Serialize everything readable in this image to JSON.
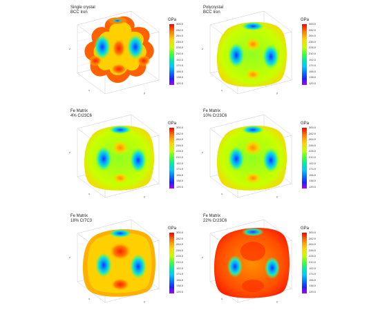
{
  "colorbar": {
    "unit": "GPa",
    "ticks": [
      "300.0",
      "282.0",
      "264.0",
      "246.0",
      "228.0",
      "210.0",
      "192.0",
      "174.0",
      "156.0",
      "138.0",
      "120.0"
    ],
    "colors": [
      "#ff0000",
      "#ff7a00",
      "#ffd400",
      "#c8ff00",
      "#3cff3c",
      "#00e8b0",
      "#00c8ff",
      "#0078ff",
      "#2020ff",
      "#7a00ff",
      "#b000ff"
    ]
  },
  "axes": {
    "x": "x",
    "y": "y",
    "z": "z"
  },
  "panels": [
    {
      "line1": "Single crystal",
      "line2": "BCC Iron",
      "shape": "star"
    },
    {
      "line1": "Polycrystal",
      "line2": "BCC Iron",
      "shape": "cube"
    },
    {
      "line1": "Fe Matrix",
      "line2": "4% Cr23C6",
      "shape": "cube"
    },
    {
      "line1": "Fe Matrix",
      "line2": "10% Cr23C6",
      "shape": "cube"
    },
    {
      "line1": "Fe Matrix",
      "line2": "18% Cr7C3",
      "shape": "cube"
    },
    {
      "line1": "Fe Matrix",
      "line2": "22% Cr23C6",
      "shape": "cube-red"
    }
  ]
}
